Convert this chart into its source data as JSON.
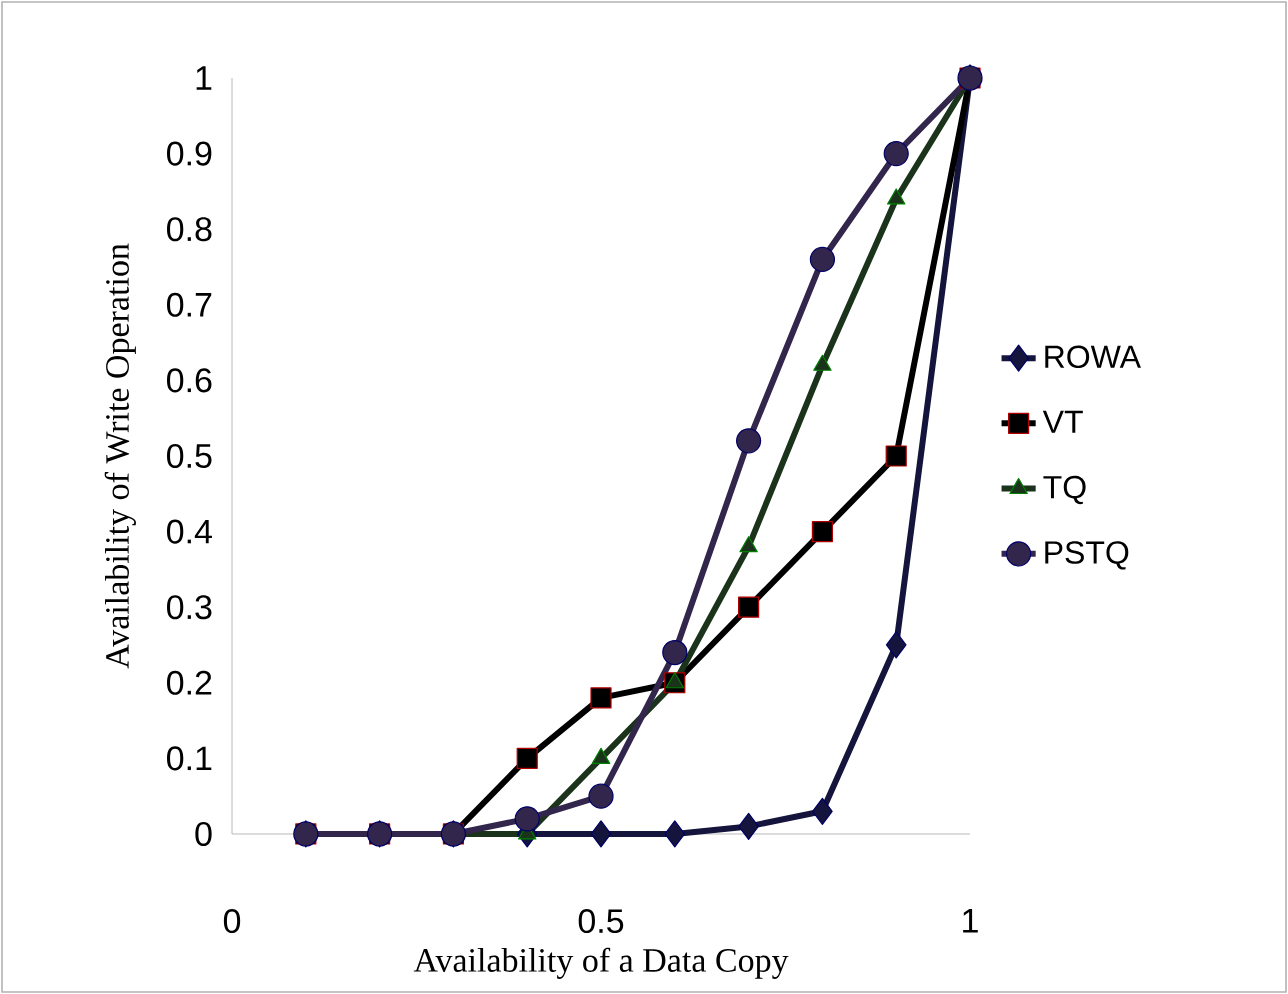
{
  "chart_data": {
    "type": "line",
    "xlabel": "Availability of a Data Copy",
    "ylabel": "Availability of Write Operation",
    "x": [
      0.1,
      0.2,
      0.3,
      0.4,
      0.5,
      0.6,
      0.7,
      0.8,
      0.9,
      1.0
    ],
    "series": [
      {
        "name": "ROWA",
        "color": "#14143c",
        "marker": "diamond",
        "values": [
          0,
          0,
          0,
          0,
          0,
          0,
          0.01,
          0.03,
          0.25,
          1
        ]
      },
      {
        "name": "VT",
        "color": "#000000",
        "marker": "square",
        "values": [
          0,
          0,
          0,
          0.1,
          0.18,
          0.2,
          0.3,
          0.4,
          0.5,
          1
        ]
      },
      {
        "name": "TQ",
        "color": "#1a331a",
        "marker": "triangle",
        "values": [
          0,
          0,
          0,
          0,
          0.1,
          0.2,
          0.38,
          0.62,
          0.84,
          1
        ]
      },
      {
        "name": "PSTQ",
        "color": "#33264d",
        "marker": "circle",
        "values": [
          0,
          0,
          0,
          0.02,
          0.05,
          0.24,
          0.52,
          0.76,
          0.9,
          1
        ]
      }
    ],
    "xlim": [
      0,
      1
    ],
    "ylim": [
      0,
      1
    ],
    "xticks": [
      0,
      0.5,
      1
    ],
    "yticks": [
      0,
      0.1,
      0.2,
      0.3,
      0.4,
      0.5,
      0.6,
      0.7,
      0.8,
      0.9,
      1
    ],
    "grid": false,
    "legend": "right",
    "line_style": "solid"
  }
}
